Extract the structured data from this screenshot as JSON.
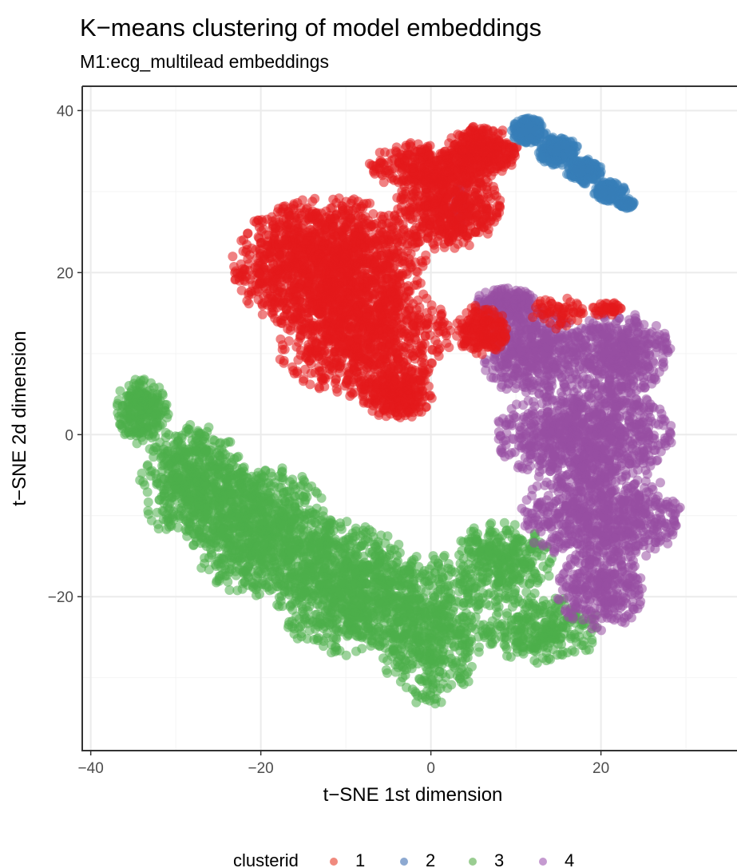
{
  "chart_data": {
    "type": "scatter",
    "title": "K−means clustering of model embeddings",
    "subtitle": "M1:ecg_multilead embeddings",
    "xlabel": "t−SNE 1st dimension",
    "ylabel": "t−SNE 2d dimension",
    "xlim": [
      -41,
      36
    ],
    "ylim": [
      -39,
      43
    ],
    "x_ticks": [
      -40,
      -20,
      0,
      20
    ],
    "x_tick_labels": [
      "−40",
      "−20",
      "0",
      "20"
    ],
    "y_ticks": [
      -20,
      0,
      20,
      40
    ],
    "y_tick_labels": [
      "−20",
      "0",
      "20",
      "40"
    ],
    "grid": true,
    "legend_position": "bottom",
    "legend_title": "clusterid",
    "point_alpha": 0.55,
    "series": [
      {
        "name": "1",
        "color": "#e41a1c",
        "legend_color": "#f08a7e",
        "regions": [
          {
            "cx": -12,
            "cy": 21,
            "rx": 11,
            "ry": 8,
            "n": 1500
          },
          {
            "cx": -8,
            "cy": 12,
            "rx": 10,
            "ry": 7,
            "n": 900
          },
          {
            "cx": -4,
            "cy": 5,
            "rx": 4,
            "ry": 3,
            "n": 250
          },
          {
            "cx": 2,
            "cy": 28,
            "rx": 6,
            "ry": 5,
            "n": 500
          },
          {
            "cx": 6,
            "cy": 35,
            "rx": 4,
            "ry": 3,
            "n": 350
          },
          {
            "cx": -1,
            "cy": 33,
            "rx": 6,
            "ry": 3,
            "n": 300
          },
          {
            "cx": 6,
            "cy": 13,
            "rx": 3,
            "ry": 3,
            "n": 200
          },
          {
            "cx": 15,
            "cy": 15,
            "rx": 3,
            "ry": 2,
            "n": 60
          },
          {
            "cx": 21,
            "cy": 15.5,
            "rx": 2,
            "ry": 1,
            "n": 40
          }
        ]
      },
      {
        "name": "2",
        "color": "#377eb8",
        "legend_color": "#8da9d1",
        "regions": [
          {
            "cx": 11.5,
            "cy": 37.5,
            "rx": 2,
            "ry": 1.5,
            "n": 250
          },
          {
            "cx": 15,
            "cy": 35,
            "rx": 2.3,
            "ry": 1.7,
            "n": 250
          },
          {
            "cx": 18,
            "cy": 32.5,
            "rx": 2,
            "ry": 1.5,
            "n": 200
          },
          {
            "cx": 21,
            "cy": 30,
            "rx": 1.8,
            "ry": 1.2,
            "n": 150
          },
          {
            "cx": 23,
            "cy": 28.5,
            "rx": 1,
            "ry": 0.6,
            "n": 60
          }
        ]
      },
      {
        "name": "3",
        "color": "#4daf4a",
        "legend_color": "#9acd91",
        "regions": [
          {
            "cx": -34,
            "cy": 3,
            "rx": 3,
            "ry": 4,
            "n": 250
          },
          {
            "cx": -28,
            "cy": -6,
            "rx": 6,
            "ry": 7,
            "n": 600
          },
          {
            "cx": -20,
            "cy": -12,
            "rx": 8,
            "ry": 8,
            "n": 900
          },
          {
            "cx": -10,
            "cy": -19,
            "rx": 8,
            "ry": 8,
            "n": 900
          },
          {
            "cx": 0,
            "cy": -24,
            "rx": 6,
            "ry": 9,
            "n": 600
          },
          {
            "cx": 8,
            "cy": -16,
            "rx": 6,
            "ry": 5,
            "n": 350
          },
          {
            "cx": 13,
            "cy": -24,
            "rx": 7,
            "ry": 4,
            "n": 300
          }
        ]
      },
      {
        "name": "4",
        "color": "#984ea3",
        "legend_color": "#c59ad0",
        "regions": [
          {
            "cx": 12,
            "cy": 10,
            "rx": 6,
            "ry": 5,
            "n": 450
          },
          {
            "cx": 22,
            "cy": 10,
            "rx": 6,
            "ry": 5,
            "n": 450
          },
          {
            "cx": 18,
            "cy": 0,
            "rx": 10,
            "ry": 6,
            "n": 900
          },
          {
            "cx": 20,
            "cy": -10,
            "rx": 9,
            "ry": 6,
            "n": 700
          },
          {
            "cx": 20,
            "cy": -19,
            "rx": 5,
            "ry": 5,
            "n": 300
          },
          {
            "cx": 9,
            "cy": 16,
            "rx": 4,
            "ry": 2,
            "n": 200
          },
          {
            "cx": 3.5,
            "cy": 28,
            "rx": 1,
            "ry": 3,
            "n": 40
          }
        ]
      }
    ]
  }
}
